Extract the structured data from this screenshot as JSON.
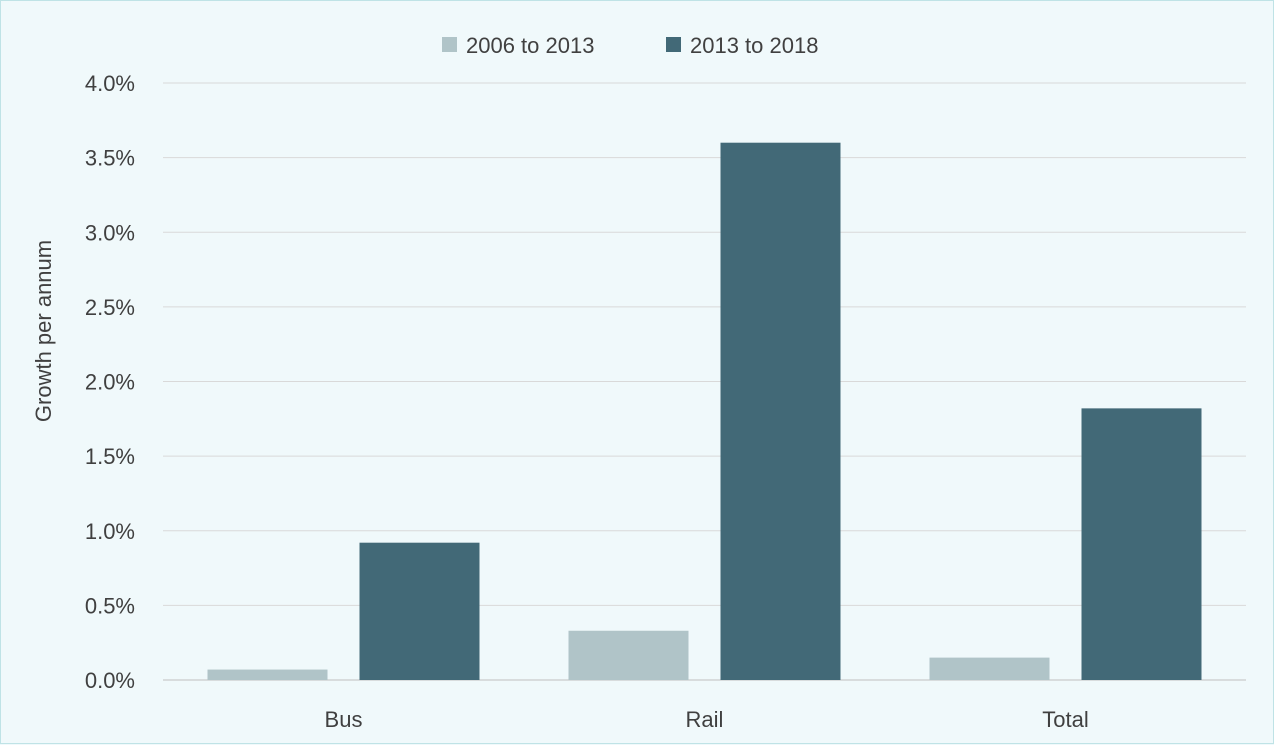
{
  "chart_data": {
    "type": "bar",
    "categories": [
      "Bus",
      "Rail",
      "Total"
    ],
    "series": [
      {
        "name": "2006 to 2013",
        "values": [
          0.0007,
          0.0033,
          0.0015
        ],
        "color": "#b0c4c8"
      },
      {
        "name": "2013 to 2018",
        "values": [
          0.0092,
          0.036,
          0.0182
        ],
        "color": "#426977"
      }
    ],
    "ylabel": "Growth per annum",
    "ylim": [
      0,
      0.04
    ],
    "yticks": [
      {
        "value": 0,
        "label": "0.0%"
      },
      {
        "value": 0.005,
        "label": "0.5%"
      },
      {
        "value": 0.01,
        "label": "1.0%"
      },
      {
        "value": 0.015,
        "label": "1.5%"
      },
      {
        "value": 0.02,
        "label": "2.0%"
      },
      {
        "value": 0.025,
        "label": "2.5%"
      },
      {
        "value": 0.03,
        "label": "3.0%"
      },
      {
        "value": 0.035,
        "label": "3.5%"
      },
      {
        "value": 0.04,
        "label": "4.0%"
      }
    ],
    "grid": true,
    "legend_position": "top-center",
    "colors": {
      "gridline": "#d9d9d9",
      "axis": "#bfbfbf",
      "background": "#f0f9fb"
    }
  }
}
